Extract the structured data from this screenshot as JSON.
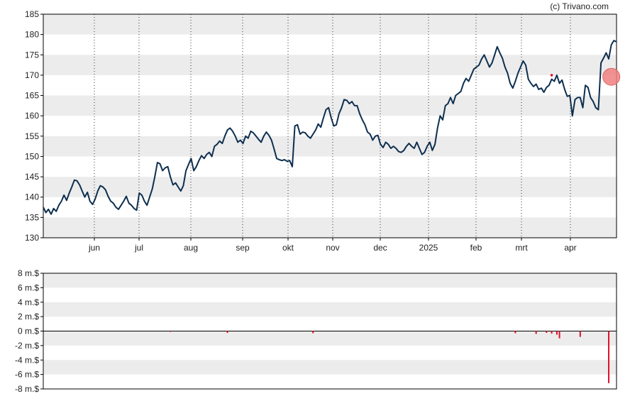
{
  "credit": "(c) Trivano.com",
  "colors": {
    "line": "#0d2f4f",
    "band": "#ececec",
    "grid": "#333333",
    "bar": "#e0102a",
    "marker": "#f08080"
  },
  "chart_data": [
    {
      "type": "line",
      "title": "",
      "xlabel": "",
      "ylabel": "",
      "ylim": [
        130,
        185
      ],
      "yticks": [
        "130",
        "135",
        "140",
        "145",
        "150",
        "155",
        "160",
        "165",
        "170",
        "175",
        "180",
        "185"
      ],
      "x_tick_labels": [
        "jun",
        "jul",
        "aug",
        "sep",
        "okt",
        "nov",
        "dec",
        "2025",
        "feb",
        "mrt",
        "apr"
      ],
      "grid": "vertical dotted lines at month starts, alternating horizontal bands",
      "series": [
        {
          "values": [
            137.5,
            136.2,
            137.0,
            135.8,
            137.2,
            136.5,
            138.0,
            139.0,
            140.5,
            139.2,
            141.0,
            142.5,
            144.2,
            144.0,
            143.0,
            141.5,
            140.0,
            141.2,
            139.0,
            138.2,
            139.5,
            141.5,
            142.8,
            142.5,
            141.8,
            140.2,
            139.0,
            138.5,
            137.5,
            137.0,
            138.0,
            139.0,
            140.2,
            138.5,
            138.0,
            137.2,
            136.8,
            141.0,
            140.5,
            139.0,
            138.0,
            140.0,
            142.0,
            145.0,
            148.5,
            148.2,
            146.5,
            147.2,
            147.5,
            145.0,
            143.0,
            143.5,
            142.5,
            141.5,
            142.8,
            146.5,
            148.0,
            149.5,
            146.5,
            147.5,
            149.0,
            150.2,
            149.5,
            150.5,
            151.0,
            150.0,
            152.5,
            153.0,
            153.8,
            153.2,
            155.0,
            156.5,
            157.0,
            156.2,
            155.0,
            153.5,
            154.0,
            153.2,
            155.0,
            154.5,
            156.2,
            155.8,
            155.0,
            154.2,
            153.5,
            155.0,
            156.0,
            155.2,
            154.0,
            151.8,
            149.5,
            149.2,
            149.0,
            149.2,
            148.8,
            149.0,
            147.5,
            157.5,
            157.8,
            155.5,
            156.0,
            155.8,
            155.0,
            154.5,
            155.5,
            156.5,
            158.0,
            157.2,
            159.5,
            161.5,
            162.0,
            159.5,
            157.5,
            157.8,
            160.5,
            162.0,
            164.0,
            163.8,
            163.0,
            163.5,
            162.5,
            162.5,
            160.5,
            159.0,
            157.8,
            156.0,
            155.5,
            154.0,
            155.0,
            155.2,
            153.0,
            152.2,
            153.5,
            153.0,
            152.0,
            152.5,
            152.0,
            151.2,
            151.0,
            151.5,
            152.5,
            153.2,
            152.5,
            152.0,
            153.5,
            152.0,
            150.5,
            151.0,
            152.5,
            153.5,
            151.5,
            153.0,
            157.0,
            160.0,
            159.0,
            162.5,
            163.0,
            164.5,
            163.0,
            165.0,
            165.5,
            166.0,
            168.0,
            169.2,
            168.5,
            170.0,
            171.5,
            172.0,
            172.5,
            174.0,
            175.0,
            173.5,
            172.0,
            173.0,
            175.0,
            177.0,
            175.5,
            174.2,
            172.0,
            170.5,
            168.0,
            166.8,
            168.5,
            170.5,
            172.0,
            173.5,
            172.5,
            169.0,
            168.0,
            167.2,
            167.8,
            166.5,
            166.8,
            165.8,
            167.0,
            167.5,
            169.0,
            168.5,
            170.0,
            168.0,
            168.8,
            166.5,
            164.8,
            165.0,
            160.0,
            164.0,
            164.5,
            164.5,
            162.0,
            167.5,
            167.0,
            164.5,
            163.5,
            162.0,
            161.5,
            173.0,
            174.2,
            175.5,
            174.0,
            177.5,
            178.5,
            178.2
          ]
        }
      ],
      "annotations": [
        {
          "type": "dot",
          "x_index": 196,
          "y": 170.0
        },
        {
          "type": "circle",
          "x_index": 219,
          "y": 169.6
        }
      ]
    },
    {
      "type": "bar",
      "title": "",
      "xlabel": "",
      "ylabel": "",
      "ylim": [
        -8,
        8
      ],
      "unit": "m.$",
      "yticks": [
        "8 m.$",
        "6 m.$",
        "4 m.$",
        "2 m.$",
        "0 m.$",
        "-2 m.$",
        "-4 m.$",
        "-6 m.$",
        "-8 m.$"
      ],
      "bars": [
        {
          "x_index": 49,
          "value": -0.1
        },
        {
          "x_index": 71,
          "value": -0.25
        },
        {
          "x_index": 104,
          "value": -0.3
        },
        {
          "x_index": 182,
          "value": -0.3
        },
        {
          "x_index": 190,
          "value": -0.4
        },
        {
          "x_index": 194,
          "value": -0.25
        },
        {
          "x_index": 196,
          "value": -0.35
        },
        {
          "x_index": 198,
          "value": -0.5
        },
        {
          "x_index": 199,
          "value": -1.0
        },
        {
          "x_index": 207,
          "value": -0.8
        },
        {
          "x_index": 218,
          "value": -7.2
        }
      ]
    }
  ]
}
